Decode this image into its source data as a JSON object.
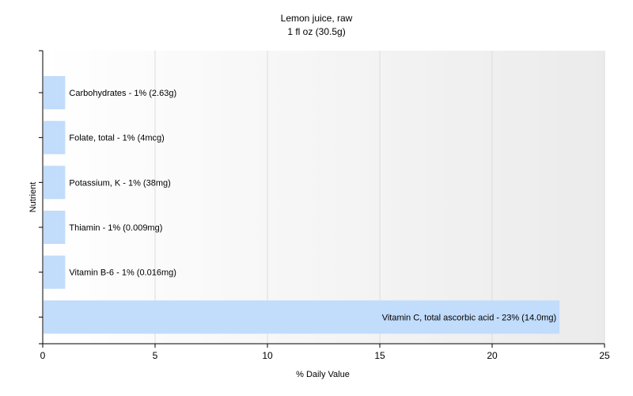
{
  "chart_data": {
    "type": "bar",
    "orientation": "horizontal",
    "title": "Lemon juice, raw",
    "subtitle": "1 fl oz (30.5g)",
    "xlabel": "% Daily Value",
    "ylabel": "Nutrient",
    "xlim": [
      0,
      25
    ],
    "xticks": [
      0,
      5,
      10,
      15,
      20,
      25
    ],
    "grid": true,
    "bar_color": "#c2dcfb",
    "categories": [
      "Carbohydrates",
      "Folate, total",
      "Potassium, K",
      "Thiamin",
      "Vitamin B-6",
      "Vitamin C, total ascorbic acid"
    ],
    "values": [
      1,
      1,
      1,
      1,
      1,
      23
    ],
    "labels": [
      "Carbohydrates - 1% (2.63g)",
      "Folate, total - 1% (4mcg)",
      "Potassium, K - 1% (38mg)",
      "Thiamin - 1% (0.009mg)",
      "Vitamin B-6 - 1% (0.016mg)",
      "Vitamin C, total ascorbic acid - 23% (14.0mg)"
    ]
  }
}
